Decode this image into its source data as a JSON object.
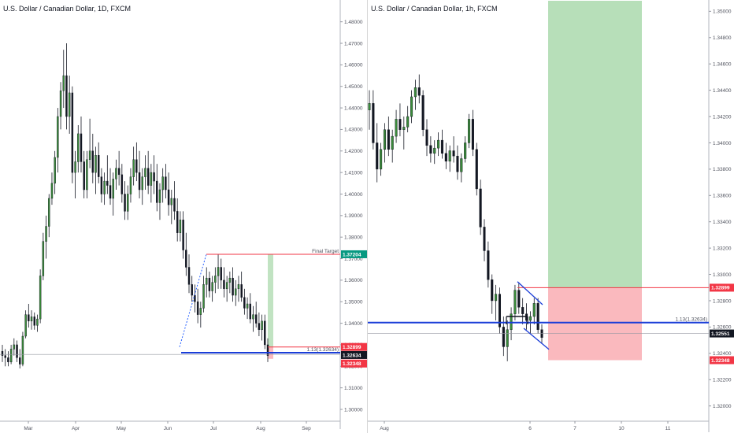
{
  "chart_data": [
    {
      "type": "candlestick",
      "title": "U.S. Dollar / Canadian Dollar, 1D, FXCM",
      "x_labels": [
        "Mar",
        "Apr",
        "May",
        "Jun",
        "Jul",
        "Aug",
        "Sep"
      ],
      "y_ticks": [
        "1.48000",
        "1.47000",
        "1.46000",
        "1.45000",
        "1.44000",
        "1.43000",
        "1.42000",
        "1.41000",
        "1.40000",
        "1.39000",
        "1.38000",
        "1.37000",
        "1.36000",
        "1.35000",
        "1.34000",
        "1.33000",
        "1.32000",
        "1.31000",
        "1.30000"
      ],
      "ylim": [
        1.3,
        1.485
      ],
      "candles": [
        [
          1.327,
          1.33,
          1.322,
          1.325
        ],
        [
          1.325,
          1.328,
          1.32,
          1.324
        ],
        [
          1.324,
          1.327,
          1.32,
          1.322
        ],
        [
          1.322,
          1.33,
          1.321,
          1.328
        ],
        [
          1.328,
          1.333,
          1.325,
          1.33
        ],
        [
          1.33,
          1.332,
          1.322,
          1.324
        ],
        [
          1.324,
          1.328,
          1.319,
          1.321
        ],
        [
          1.321,
          1.336,
          1.32,
          1.334
        ],
        [
          1.334,
          1.346,
          1.333,
          1.344
        ],
        [
          1.344,
          1.349,
          1.338,
          1.341
        ],
        [
          1.341,
          1.346,
          1.337,
          1.343
        ],
        [
          1.343,
          1.345,
          1.337,
          1.339
        ],
        [
          1.339,
          1.344,
          1.336,
          1.342
        ],
        [
          1.342,
          1.365,
          1.34,
          1.362
        ],
        [
          1.362,
          1.382,
          1.36,
          1.378
        ],
        [
          1.378,
          1.39,
          1.37,
          1.385
        ],
        [
          1.385,
          1.4,
          1.38,
          1.398
        ],
        [
          1.398,
          1.41,
          1.395,
          1.405
        ],
        [
          1.405,
          1.42,
          1.4,
          1.417
        ],
        [
          1.417,
          1.44,
          1.41,
          1.436
        ],
        [
          1.436,
          1.452,
          1.43,
          1.448
        ],
        [
          1.448,
          1.467,
          1.44,
          1.455
        ],
        [
          1.455,
          1.47,
          1.43,
          1.436
        ],
        [
          1.436,
          1.455,
          1.428,
          1.447
        ],
        [
          1.447,
          1.45,
          1.405,
          1.41
        ],
        [
          1.41,
          1.42,
          1.398,
          1.415
        ],
        [
          1.415,
          1.432,
          1.41,
          1.428
        ],
        [
          1.428,
          1.436,
          1.41,
          1.415
        ],
        [
          1.415,
          1.42,
          1.398,
          1.402
        ],
        [
          1.402,
          1.42,
          1.398,
          1.416
        ],
        [
          1.416,
          1.435,
          1.412,
          1.42
        ],
        [
          1.42,
          1.428,
          1.405,
          1.41
        ],
        [
          1.41,
          1.422,
          1.4,
          1.418
        ],
        [
          1.418,
          1.424,
          1.405,
          1.408
        ],
        [
          1.408,
          1.412,
          1.396,
          1.4
        ],
        [
          1.4,
          1.41,
          1.395,
          1.406
        ],
        [
          1.406,
          1.418,
          1.4,
          1.404
        ],
        [
          1.404,
          1.412,
          1.395,
          1.398
        ],
        [
          1.398,
          1.41,
          1.39,
          1.407
        ],
        [
          1.407,
          1.416,
          1.402,
          1.412
        ],
        [
          1.412,
          1.42,
          1.404,
          1.409
        ],
        [
          1.409,
          1.414,
          1.396,
          1.4
        ],
        [
          1.4,
          1.406,
          1.388,
          1.392
        ],
        [
          1.392,
          1.404,
          1.388,
          1.4
        ],
        [
          1.4,
          1.412,
          1.396,
          1.408
        ],
        [
          1.408,
          1.422,
          1.404,
          1.416
        ],
        [
          1.416,
          1.424,
          1.406,
          1.41
        ],
        [
          1.41,
          1.42,
          1.398,
          1.402
        ],
        [
          1.402,
          1.412,
          1.395,
          1.408
        ],
        [
          1.408,
          1.418,
          1.402,
          1.412
        ],
        [
          1.412,
          1.42,
          1.4,
          1.404
        ],
        [
          1.404,
          1.414,
          1.396,
          1.41
        ],
        [
          1.41,
          1.418,
          1.4,
          1.406
        ],
        [
          1.406,
          1.414,
          1.392,
          1.396
        ],
        [
          1.396,
          1.405,
          1.388,
          1.402
        ],
        [
          1.402,
          1.412,
          1.396,
          1.408
        ],
        [
          1.408,
          1.414,
          1.398,
          1.402
        ],
        [
          1.402,
          1.41,
          1.39,
          1.395
        ],
        [
          1.395,
          1.402,
          1.386,
          1.398
        ],
        [
          1.398,
          1.406,
          1.388,
          1.392
        ],
        [
          1.392,
          1.398,
          1.378,
          1.382
        ],
        [
          1.382,
          1.392,
          1.378,
          1.388
        ],
        [
          1.388,
          1.392,
          1.37,
          1.374
        ],
        [
          1.374,
          1.382,
          1.362,
          1.366
        ],
        [
          1.366,
          1.372,
          1.354,
          1.358
        ],
        [
          1.358,
          1.362,
          1.35,
          1.353
        ],
        [
          1.353,
          1.358,
          1.345,
          1.35
        ],
        [
          1.35,
          1.356,
          1.34,
          1.344
        ],
        [
          1.344,
          1.35,
          1.338,
          1.347
        ],
        [
          1.347,
          1.362,
          1.345,
          1.358
        ],
        [
          1.358,
          1.366,
          1.352,
          1.361
        ],
        [
          1.361,
          1.364,
          1.352,
          1.355
        ],
        [
          1.355,
          1.362,
          1.35,
          1.359
        ],
        [
          1.359,
          1.366,
          1.354,
          1.362
        ],
        [
          1.362,
          1.372,
          1.356,
          1.366
        ],
        [
          1.366,
          1.37,
          1.356,
          1.36
        ],
        [
          1.36,
          1.366,
          1.352,
          1.356
        ],
        [
          1.356,
          1.362,
          1.35,
          1.359
        ],
        [
          1.359,
          1.364,
          1.354,
          1.361
        ],
        [
          1.361,
          1.366,
          1.35,
          1.353
        ],
        [
          1.353,
          1.36,
          1.348,
          1.356
        ],
        [
          1.356,
          1.362,
          1.35,
          1.358
        ],
        [
          1.358,
          1.364,
          1.35,
          1.352
        ],
        [
          1.352,
          1.356,
          1.344,
          1.347
        ],
        [
          1.347,
          1.352,
          1.342,
          1.349
        ],
        [
          1.349,
          1.354,
          1.34,
          1.342
        ],
        [
          1.342,
          1.348,
          1.336,
          1.344
        ],
        [
          1.344,
          1.35,
          1.338,
          1.34
        ],
        [
          1.34,
          1.345,
          1.334,
          1.337
        ],
        [
          1.337,
          1.344,
          1.332,
          1.341
        ],
        [
          1.341,
          1.344,
          1.328,
          1.33
        ],
        [
          1.33,
          1.333,
          1.322,
          1.325
        ]
      ],
      "annotations": [
        {
          "label": "Final Target",
          "price": 1.37204,
          "color": "#f23645"
        },
        {
          "label": "1.13(1.32634)",
          "price": 1.32634,
          "color": "#2962ff"
        }
      ],
      "price_tags": [
        {
          "label": "1.37204",
          "price": 1.37204,
          "color": "#089981"
        },
        {
          "label": "1.32899",
          "price": 1.32899,
          "color": "#f23645"
        },
        {
          "label": "1.32634",
          "price": 1.32634,
          "color": "#131722"
        },
        {
          "label": "1.32348",
          "price": 1.32348,
          "color": "#f23645"
        }
      ]
    },
    {
      "type": "candlestick",
      "title": "U.S. Dollar / Canadian Dollar, 1h, FXCM",
      "x_labels": [
        "Aug",
        "6",
        "7",
        "10",
        "11"
      ],
      "y_ticks": [
        "1.35000",
        "1.34800",
        "1.34600",
        "1.34400",
        "1.34200",
        "1.34000",
        "1.33800",
        "1.33600",
        "1.33400",
        "1.33200",
        "1.33000",
        "1.32800",
        "1.32600",
        "1.32400",
        "1.32200",
        "1.32000"
      ],
      "ylim": [
        1.3195,
        1.3505
      ],
      "candles": [
        [
          1.3425,
          1.344,
          1.341,
          1.343
        ],
        [
          1.343,
          1.344,
          1.3395,
          1.34
        ],
        [
          1.34,
          1.3415,
          1.337,
          1.338
        ],
        [
          1.338,
          1.34,
          1.3375,
          1.3395
        ],
        [
          1.3395,
          1.3415,
          1.3385,
          1.341
        ],
        [
          1.341,
          1.342,
          1.339,
          1.3395
        ],
        [
          1.3395,
          1.341,
          1.3385,
          1.3405
        ],
        [
          1.3405,
          1.3425,
          1.34,
          1.3418
        ],
        [
          1.3418,
          1.343,
          1.3405,
          1.341
        ],
        [
          1.341,
          1.342,
          1.3395,
          1.3412
        ],
        [
          1.3412,
          1.3428,
          1.3408,
          1.342
        ],
        [
          1.342,
          1.344,
          1.3415,
          1.3435
        ],
        [
          1.3435,
          1.3448,
          1.3425,
          1.3442
        ],
        [
          1.3442,
          1.3452,
          1.343,
          1.3436
        ],
        [
          1.3436,
          1.344,
          1.3405,
          1.341
        ],
        [
          1.341,
          1.3418,
          1.339,
          1.3398
        ],
        [
          1.3398,
          1.3405,
          1.3385,
          1.3392
        ],
        [
          1.3392,
          1.3402,
          1.3384,
          1.3396
        ],
        [
          1.3396,
          1.3408,
          1.339,
          1.3402
        ],
        [
          1.3402,
          1.341,
          1.3388,
          1.3392
        ],
        [
          1.3392,
          1.34,
          1.338,
          1.3386
        ],
        [
          1.3386,
          1.3398,
          1.3378,
          1.3394
        ],
        [
          1.3394,
          1.3405,
          1.3385,
          1.339
        ],
        [
          1.339,
          1.3398,
          1.3372,
          1.3378
        ],
        [
          1.3378,
          1.3392,
          1.337,
          1.3388
        ],
        [
          1.3388,
          1.3405,
          1.3385,
          1.34
        ],
        [
          1.34,
          1.3422,
          1.3396,
          1.3418
        ],
        [
          1.3418,
          1.3425,
          1.339,
          1.3395
        ],
        [
          1.3395,
          1.34,
          1.336,
          1.3365
        ],
        [
          1.3365,
          1.3372,
          1.333,
          1.3336
        ],
        [
          1.3336,
          1.3342,
          1.331,
          1.3318
        ],
        [
          1.3318,
          1.3325,
          1.329,
          1.3296
        ],
        [
          1.3296,
          1.33,
          1.327,
          1.328
        ],
        [
          1.328,
          1.3292,
          1.3265,
          1.3285
        ],
        [
          1.3285,
          1.329,
          1.3255,
          1.326
        ],
        [
          1.326,
          1.3268,
          1.3238,
          1.3245
        ],
        [
          1.3245,
          1.3265,
          1.3234,
          1.3258
        ],
        [
          1.3258,
          1.3275,
          1.325,
          1.327
        ],
        [
          1.327,
          1.3292,
          1.3265,
          1.3288
        ],
        [
          1.3288,
          1.3294,
          1.327,
          1.3275
        ],
        [
          1.3275,
          1.3282,
          1.3262,
          1.327
        ],
        [
          1.327,
          1.3278,
          1.3258,
          1.3265
        ],
        [
          1.3265,
          1.3272,
          1.3255,
          1.3268
        ],
        [
          1.3268,
          1.3282,
          1.3262,
          1.3278
        ],
        [
          1.3278,
          1.3282,
          1.3255,
          1.3258
        ],
        [
          1.3258,
          1.3262,
          1.3248,
          1.3252
        ]
      ],
      "annotations": [
        {
          "label": "1.13(1.32634)",
          "price": 1.32634,
          "color": "#2962ff"
        }
      ],
      "price_tags": [
        {
          "label": "1.32899",
          "price": 1.32899,
          "color": "#f23645"
        },
        {
          "label": "1.32551",
          "price": 1.32551,
          "color": "#131722"
        },
        {
          "label": "1.32348",
          "price": 1.32348,
          "color": "#f23645"
        }
      ]
    }
  ]
}
